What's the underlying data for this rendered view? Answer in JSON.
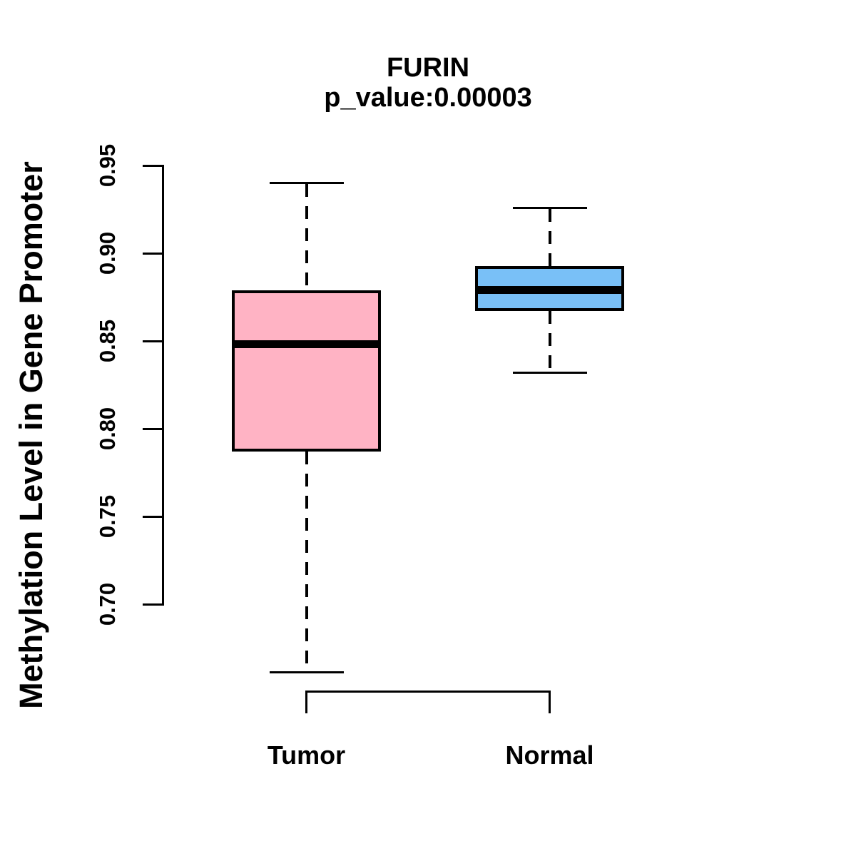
{
  "chart_data": {
    "type": "boxplot",
    "title": "FURIN",
    "subtitle": "p_value:0.00003",
    "ylabel": "Methylation Level in Gene Promoter",
    "xlabel": "",
    "ylim": [
      0.7,
      0.95
    ],
    "yticks": [
      0.7,
      0.75,
      0.8,
      0.85,
      0.9,
      0.95
    ],
    "ytick_labels": [
      "0.70",
      "0.75",
      "0.80",
      "0.85",
      "0.90",
      "0.95"
    ],
    "grid": false,
    "legend": "none",
    "categories": [
      "Tumor",
      "Normal"
    ],
    "groups": [
      {
        "label": "Tumor",
        "fill": "#FFB3C4",
        "whisker_low": 0.661,
        "q1": 0.788,
        "median": 0.848,
        "q3": 0.878,
        "whisker_high": 0.94,
        "outliers": []
      },
      {
        "label": "Normal",
        "fill": "#79C0F7",
        "whisker_low": 0.832,
        "q1": 0.868,
        "median": 0.879,
        "q3": 0.892,
        "whisker_high": 0.926,
        "outliers": []
      }
    ],
    "stroke_color": "#000000",
    "background_color": "#FFFFFF"
  }
}
